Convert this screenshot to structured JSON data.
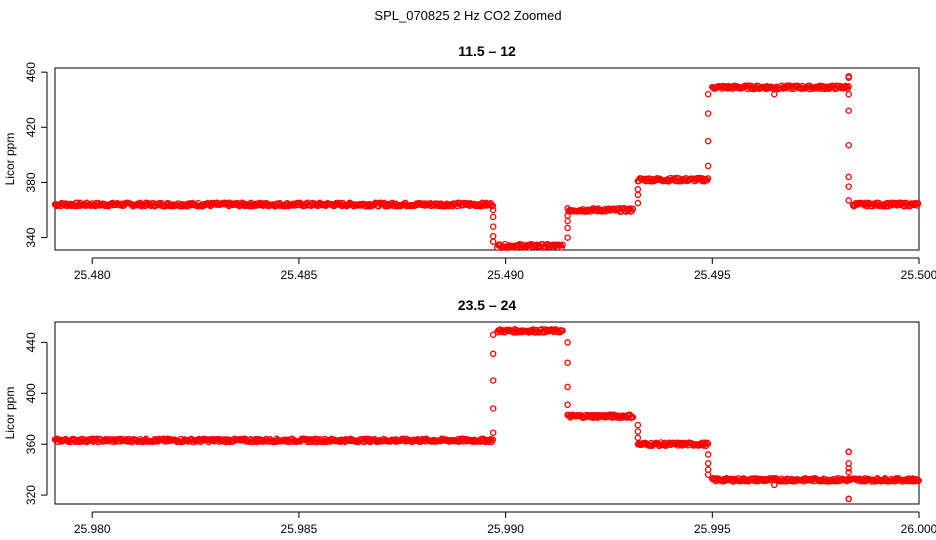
{
  "figure": {
    "title": "SPL_070825  2 Hz CO2 Zoomed"
  },
  "colors": {
    "points": "#ff0000",
    "axis": "#000000",
    "background": "#ffffff"
  },
  "chart_data": [
    {
      "type": "scatter",
      "title": "11.5 – 12",
      "xlabel": "",
      "ylabel": "Licor ppm",
      "xlim": [
        25.4791,
        25.5
      ],
      "ylim": [
        331,
        463
      ],
      "xticks": [
        "25.480",
        "25.485",
        "25.490",
        "25.495",
        "25.500"
      ],
      "xtick_values": [
        25.48,
        25.485,
        25.49,
        25.495,
        25.5
      ],
      "yticks": [
        "340",
        "380",
        "420",
        "460"
      ],
      "ytick_values": [
        340,
        380,
        420,
        460
      ],
      "grid": false,
      "marker": "open-circle",
      "segments": [
        {
          "x_start": 25.4791,
          "x_end": 25.4897,
          "y": 364
        },
        {
          "x_start": 25.4898,
          "x_end": 25.4914,
          "y": 334
        },
        {
          "x_start": 25.4915,
          "x_end": 25.4931,
          "y": 360
        },
        {
          "x_start": 25.4932,
          "x_end": 25.4949,
          "y": 382
        },
        {
          "x_start": 25.495,
          "x_end": 25.4983,
          "y": 449
        },
        {
          "x_start": 25.4984,
          "x_end": 25.5,
          "y": 364
        }
      ],
      "transitions": [
        {
          "x": 25.4897,
          "y": [
            360,
            355,
            348,
            341,
            337
          ]
        },
        {
          "x": 25.4915,
          "y": [
            340,
            347,
            352,
            356
          ]
        },
        {
          "x": 25.4932,
          "y": [
            365,
            371,
            375
          ]
        },
        {
          "x": 25.4949,
          "y": [
            392,
            410,
            430,
            444
          ]
        },
        {
          "x": 25.4983,
          "y": [
            456,
            444,
            432,
            407,
            384,
            377,
            367
          ]
        }
      ],
      "outliers": [
        {
          "x": 25.4965,
          "y": 444
        },
        {
          "x": 25.4983,
          "y": 457
        }
      ]
    },
    {
      "type": "scatter",
      "title": "23.5 – 24",
      "xlabel": "",
      "ylabel": "Licor ppm",
      "xlim": [
        25.9791,
        26.0
      ],
      "ylim": [
        313,
        456
      ],
      "xticks": [
        "25.980",
        "25.985",
        "25.990",
        "25.995",
        "26.000"
      ],
      "xtick_values": [
        25.98,
        25.985,
        25.99,
        25.995,
        26.0
      ],
      "yticks": [
        "320",
        "360",
        "400",
        "440"
      ],
      "ytick_values": [
        320,
        360,
        400,
        440
      ],
      "grid": false,
      "marker": "open-circle",
      "segments": [
        {
          "x_start": 25.9791,
          "x_end": 25.9897,
          "y": 363
        },
        {
          "x_start": 25.9898,
          "x_end": 25.9914,
          "y": 449
        },
        {
          "x_start": 25.9915,
          "x_end": 25.9931,
          "y": 382
        },
        {
          "x_start": 25.9932,
          "x_end": 25.9949,
          "y": 360
        },
        {
          "x_start": 25.995,
          "x_end": 26.0,
          "y": 332
        }
      ],
      "transitions": [
        {
          "x": 25.9897,
          "y": [
            369,
            388,
            410,
            431,
            446
          ]
        },
        {
          "x": 25.9915,
          "y": [
            440,
            424,
            405,
            391
          ]
        },
        {
          "x": 25.9932,
          "y": [
            375,
            370,
            365
          ]
        },
        {
          "x": 25.9949,
          "y": [
            352,
            345,
            340,
            336
          ]
        },
        {
          "x": 25.9983,
          "y": [
            354,
            345,
            341,
            338,
            317
          ]
        }
      ],
      "outliers": [
        {
          "x": 25.9965,
          "y": 328
        },
        {
          "x": 25.9983,
          "y": 317
        },
        {
          "x": 25.9983,
          "y": 354
        }
      ]
    }
  ]
}
